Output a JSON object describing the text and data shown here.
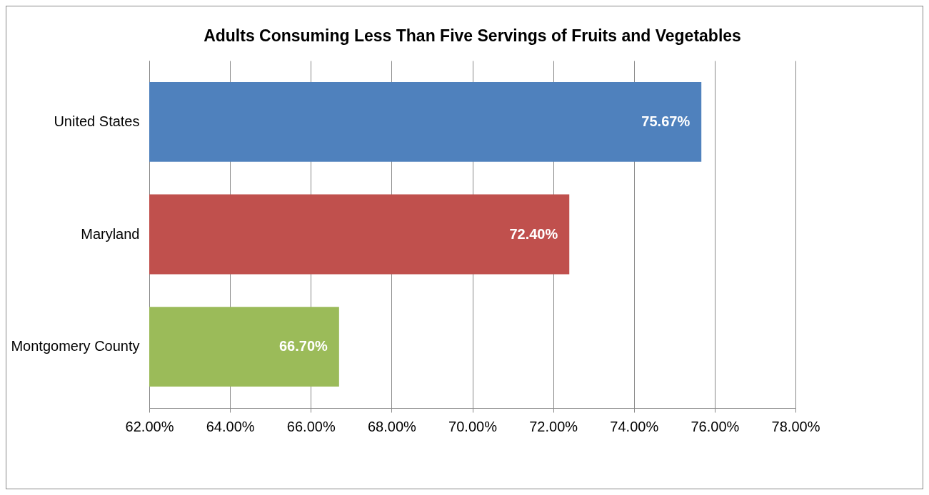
{
  "chart_data": {
    "type": "bar",
    "orientation": "horizontal",
    "title": "Adults Consuming Less Than Five Servings of Fruits and Vegetables",
    "categories": [
      "United States",
      "Maryland",
      "Montgomery County"
    ],
    "values": [
      75.67,
      72.4,
      66.7
    ],
    "colors": [
      "#4f81bd",
      "#c0504d",
      "#9bbb59"
    ],
    "value_labels": [
      "75.67%",
      "72.40%",
      "66.70%"
    ],
    "xlim": [
      62,
      78
    ],
    "xticks": [
      {
        "value": 62,
        "label": "62.00%"
      },
      {
        "value": 64,
        "label": "64.00%"
      },
      {
        "value": 66,
        "label": "66.00%"
      },
      {
        "value": 68,
        "label": "68.00%"
      },
      {
        "value": 70,
        "label": "70.00%"
      },
      {
        "value": 72,
        "label": "72.00%"
      },
      {
        "value": 74,
        "label": "74.00%"
      },
      {
        "value": 76,
        "label": "76.00%"
      },
      {
        "value": 78,
        "label": "78.00%"
      }
    ],
    "grid": "x"
  }
}
